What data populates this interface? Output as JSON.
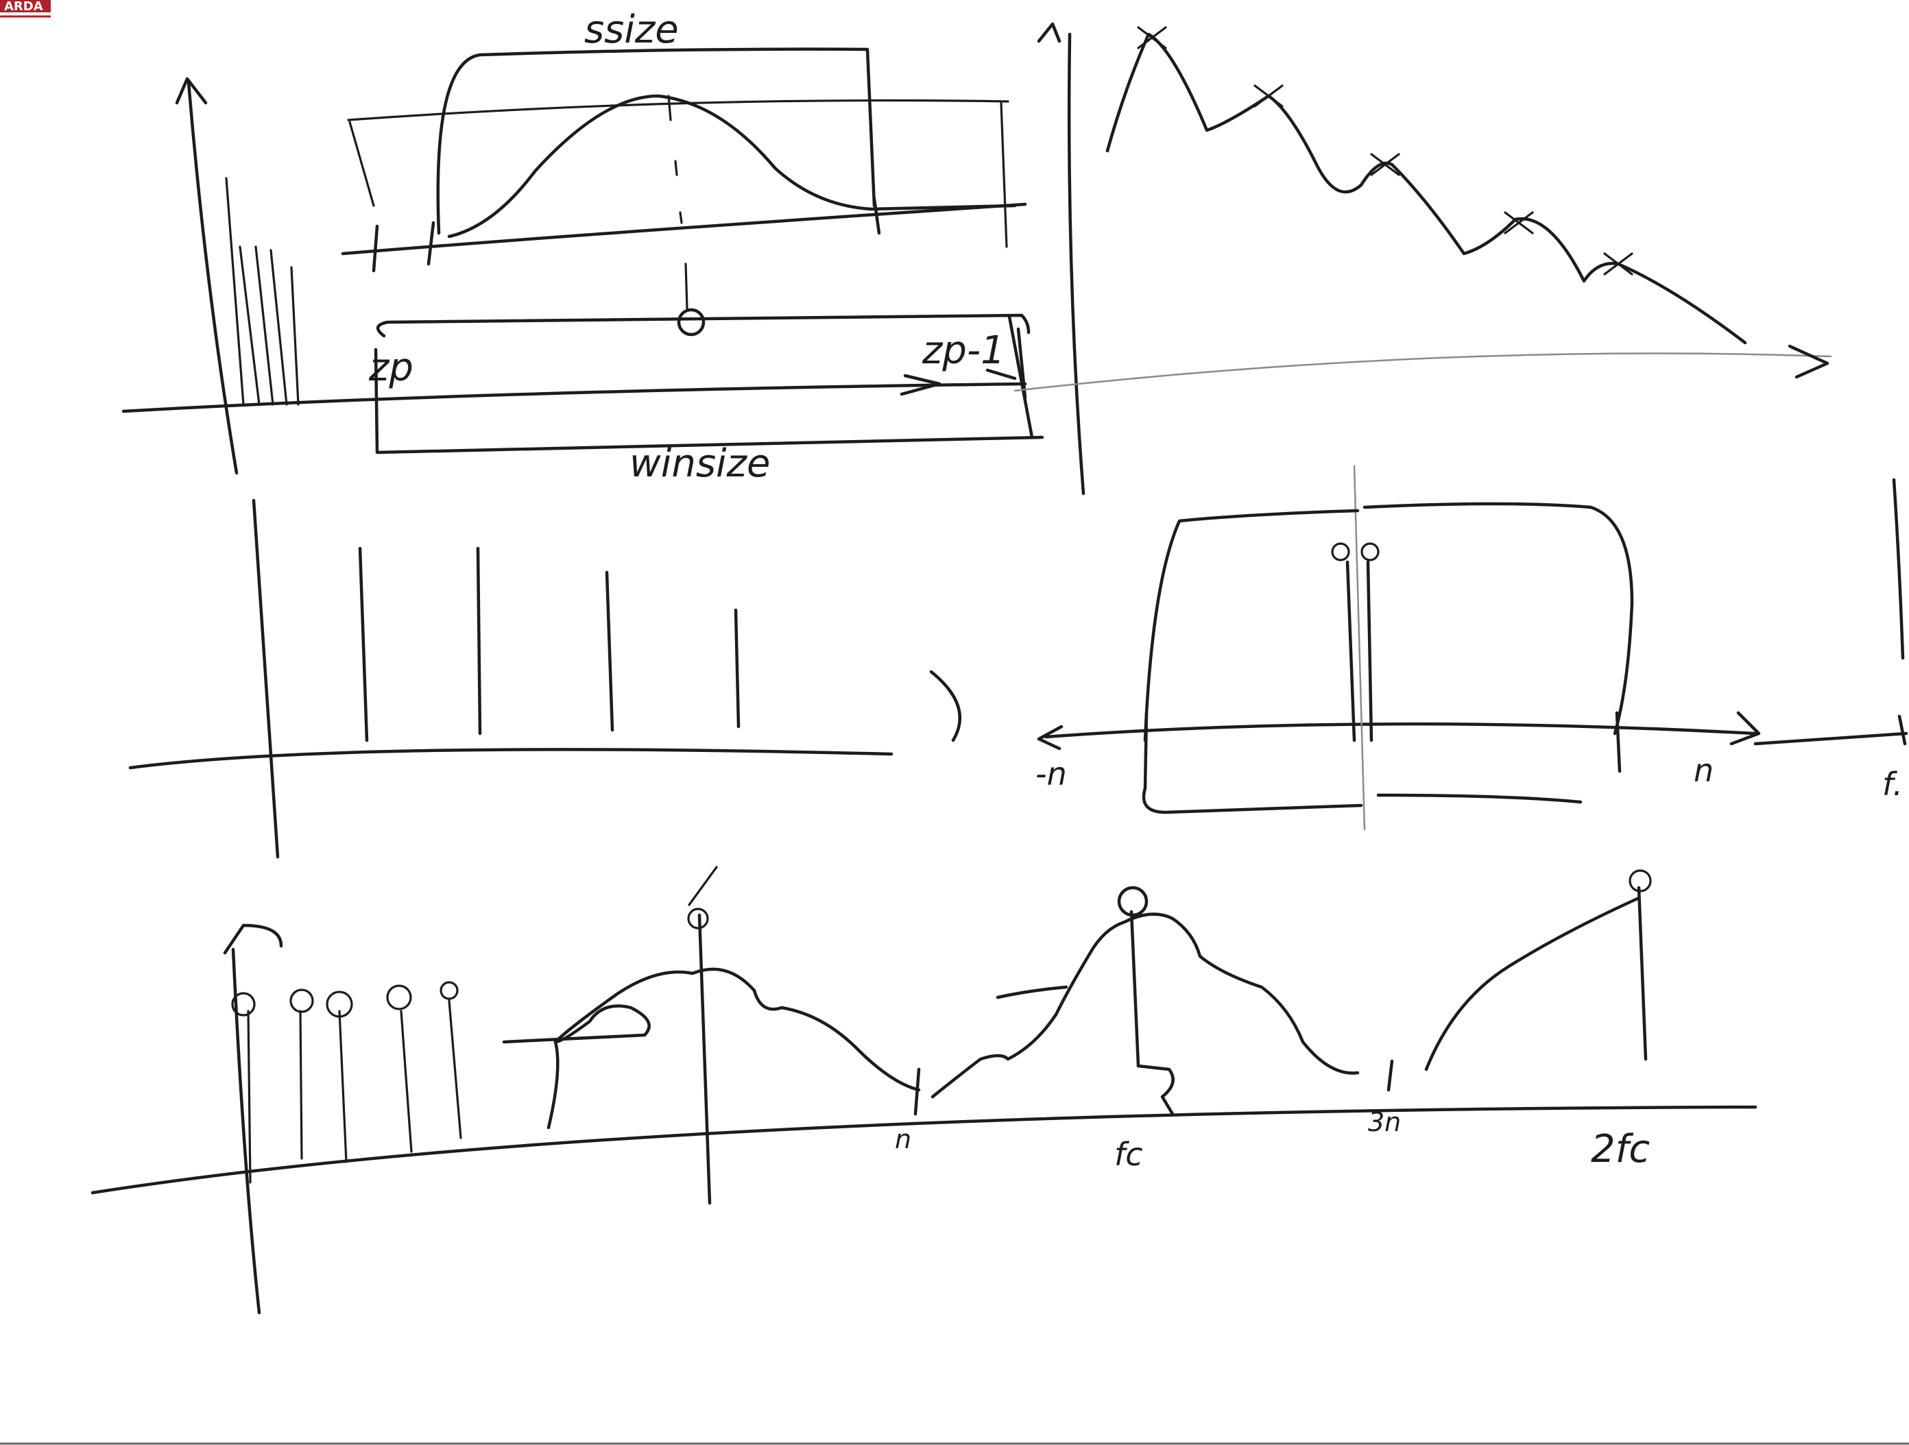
{
  "logo": {
    "text": "ARDA",
    "color": "#b0202a"
  },
  "ink_color": "#1c1c1c",
  "labels": {
    "ssize": "ssize",
    "zp_left": "zp",
    "zp_right": "zp-1",
    "winsize": "winsize",
    "neg_n": "-n",
    "pos_n": "n",
    "fs_cut": "f.",
    "n_bottom": "n",
    "fc": "fc",
    "three_n": "3n",
    "two_fc": "2fc"
  }
}
